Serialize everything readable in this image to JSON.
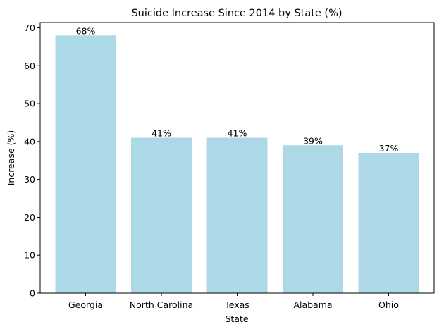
{
  "chart_data": {
    "type": "bar",
    "title": "Suicide Increase Since 2014 by State (%)",
    "xlabel": "State",
    "ylabel": "Increase (%)",
    "categories": [
      "Georgia",
      "North Carolina",
      "Texas",
      "Alabama",
      "Ohio"
    ],
    "values": [
      68,
      41,
      41,
      39,
      37
    ],
    "data_labels": [
      "68%",
      "41%",
      "41%",
      "39%",
      "37%"
    ],
    "ylim": [
      0,
      71.4
    ],
    "yticks": [
      0,
      10,
      20,
      30,
      40,
      50,
      60,
      70
    ],
    "grid": false,
    "bar_color": "#add8e6"
  }
}
